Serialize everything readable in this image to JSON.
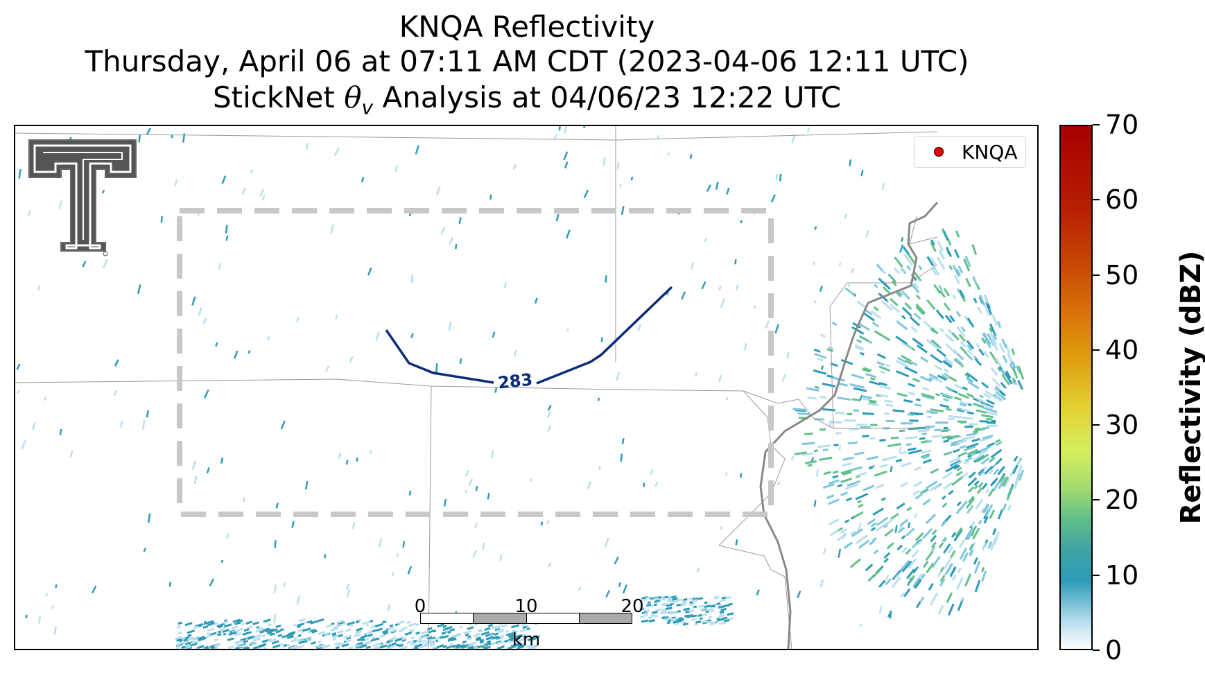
{
  "title": {
    "line1": "KNQA Reflectivity",
    "line2": "Thursday, April 06 at 07:11 AM CDT (2023-04-06 12:11 UTC)",
    "line3_prefix": "StickNet ",
    "line3_symbol": "θ",
    "line3_subscript": "v",
    "line3_suffix": " Analysis at 04/06/23 12:22 UTC"
  },
  "legend": {
    "label": "KNQA",
    "marker_color": "#ee0000"
  },
  "contour": {
    "label": "283",
    "color": "#0b2a78"
  },
  "colorbar": {
    "label": "Reflectivity (dBZ)",
    "ticks": [
      "0",
      "10",
      "20",
      "30",
      "40",
      "50",
      "60",
      "70"
    ],
    "min": 0,
    "max": 70
  },
  "scale_bar": {
    "ticks": [
      "0",
      "10",
      "20"
    ],
    "unit": "km",
    "segment_colors": [
      "#ffffff",
      "#aaaaaa",
      "#ffffff",
      "#aaaaaa"
    ]
  },
  "colors": {
    "analysis_box": "#c8c8c8",
    "county_lines": "#999999",
    "river": "#888888",
    "echo_light": "#b9dfee",
    "echo_medium": "#2d9bb8",
    "echo_green": "#62c08a"
  }
}
